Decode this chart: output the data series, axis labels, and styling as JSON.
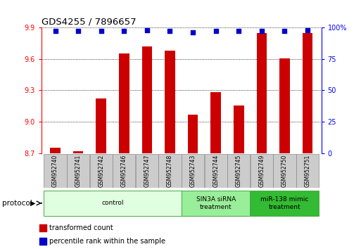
{
  "title": "GDS4255 / 7896657",
  "samples": [
    "GSM952740",
    "GSM952741",
    "GSM952742",
    "GSM952746",
    "GSM952747",
    "GSM952748",
    "GSM952743",
    "GSM952744",
    "GSM952745",
    "GSM952749",
    "GSM952750",
    "GSM952751"
  ],
  "bar_values": [
    8.755,
    8.718,
    9.22,
    9.648,
    9.72,
    9.675,
    9.07,
    9.285,
    9.155,
    9.845,
    9.605,
    9.845
  ],
  "percentile_values": [
    97,
    97,
    97,
    97,
    98,
    97,
    96,
    97,
    97,
    97,
    97,
    98
  ],
  "ylim_left": [
    8.7,
    9.9
  ],
  "ylim_right": [
    0,
    100
  ],
  "yticks_left": [
    8.7,
    9.0,
    9.3,
    9.6,
    9.9
  ],
  "yticks_right": [
    0,
    25,
    50,
    75,
    100
  ],
  "bar_color": "#cc0000",
  "dot_color": "#0000cc",
  "bar_bottom": 8.7,
  "protocol_groups": [
    {
      "label": "control",
      "start": 0,
      "end": 5,
      "color": "#e0ffe0"
    },
    {
      "label": "SIN3A siRNA\ntreatment",
      "start": 6,
      "end": 8,
      "color": "#99ee99"
    },
    {
      "label": "miR-138 mimic\ntreatment",
      "start": 9,
      "end": 11,
      "color": "#33bb33"
    }
  ],
  "legend_items": [
    {
      "label": "transformed count",
      "color": "#cc0000"
    },
    {
      "label": "percentile rank within the sample",
      "color": "#0000cc"
    }
  ],
  "tick_label_bg": "#cccccc",
  "protocol_label": "protocol"
}
